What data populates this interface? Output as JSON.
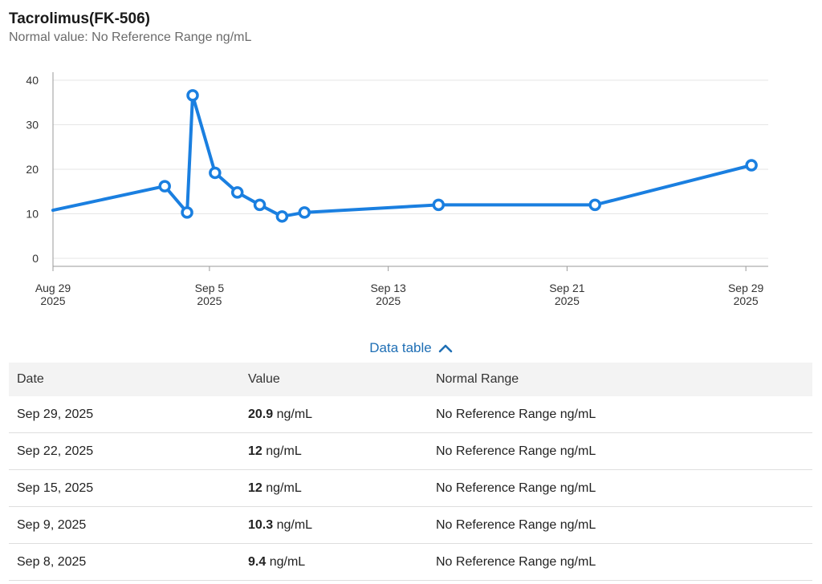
{
  "header": {
    "title": "Tacrolimus(FK-506)",
    "subtitle": "Normal value: No Reference Range ng/mL"
  },
  "chart_data": {
    "type": "line",
    "title": "",
    "xlabel": "",
    "ylabel": "",
    "ylim": [
      0,
      40
    ],
    "yticks": [
      0,
      10,
      20,
      30,
      40
    ],
    "xlim": [
      "2025-08-29",
      "2025-09-30"
    ],
    "xticks": [
      {
        "date": "2025-08-29",
        "line1": "Aug 29",
        "line2": "2025"
      },
      {
        "date": "2025-09-05",
        "line1": "Sep 5",
        "line2": "2025"
      },
      {
        "date": "2025-09-13",
        "line1": "Sep 13",
        "line2": "2025"
      },
      {
        "date": "2025-09-21",
        "line1": "Sep 21",
        "line2": "2025"
      },
      {
        "date": "2025-09-29",
        "line1": "Sep 29",
        "line2": "2025"
      }
    ],
    "grid": true,
    "series_color": "#1a7fe0",
    "series": [
      {
        "lead_in": {
          "x": "2025-08-29",
          "y": 10.8
        },
        "points": [
          {
            "x": "2025-09-03",
            "y": 16.2
          },
          {
            "x": "2025-09-04",
            "y": 10.3
          },
          {
            "x": "2025-09-04 06:00",
            "y": 36.6
          },
          {
            "x": "2025-09-05 06:00",
            "y": 19.2
          },
          {
            "x": "2025-09-06 06:00",
            "y": 14.8
          },
          {
            "x": "2025-09-07 06:00",
            "y": 12
          },
          {
            "x": "2025-09-08 06:00",
            "y": 9.4
          },
          {
            "x": "2025-09-09 06:00",
            "y": 10.3
          },
          {
            "x": "2025-09-15 06:00",
            "y": 12
          },
          {
            "x": "2025-09-22 06:00",
            "y": 12
          },
          {
            "x": "2025-09-29 06:00",
            "y": 20.9
          }
        ]
      }
    ]
  },
  "toggle": {
    "label": "Data table"
  },
  "table": {
    "headers": [
      "Date",
      "Value",
      "Normal Range"
    ],
    "rows": [
      {
        "date": "Sep 29, 2025",
        "value": "20.9",
        "unit": "ng/mL",
        "range": "No Reference Range ng/mL"
      },
      {
        "date": "Sep 22, 2025",
        "value": "12",
        "unit": "ng/mL",
        "range": "No Reference Range ng/mL"
      },
      {
        "date": "Sep 15, 2025",
        "value": "12",
        "unit": "ng/mL",
        "range": "No Reference Range ng/mL"
      },
      {
        "date": "Sep 9, 2025",
        "value": "10.3",
        "unit": "ng/mL",
        "range": "No Reference Range ng/mL"
      },
      {
        "date": "Sep 8, 2025",
        "value": "9.4",
        "unit": "ng/mL",
        "range": "No Reference Range ng/mL"
      }
    ]
  }
}
